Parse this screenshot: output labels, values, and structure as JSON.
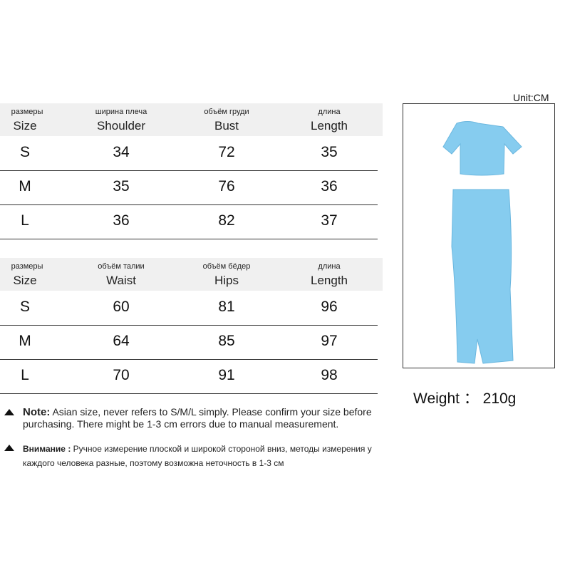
{
  "unit": "Unit:CM",
  "top_table": {
    "headers": [
      {
        "ru": "размеры",
        "en": "Size"
      },
      {
        "ru": "ширина плеча",
        "en": "Shoulder"
      },
      {
        "ru": "объём груди",
        "en": "Bust"
      },
      {
        "ru": "длина",
        "en": "Length"
      }
    ],
    "rows": [
      [
        "S",
        "34",
        "72",
        "35"
      ],
      [
        "M",
        "35",
        "76",
        "36"
      ],
      [
        "L",
        "36",
        "82",
        "37"
      ]
    ]
  },
  "bottom_table": {
    "headers": [
      {
        "ru": "размеры",
        "en": "Size"
      },
      {
        "ru": "объём талии",
        "en": "Waist"
      },
      {
        "ru": "объём бёдер",
        "en": "Hips"
      },
      {
        "ru": "длина",
        "en": "Length"
      }
    ],
    "rows": [
      [
        "S",
        "60",
        "81",
        "96"
      ],
      [
        "M",
        "64",
        "85",
        "97"
      ],
      [
        "L",
        "70",
        "91",
        "98"
      ]
    ]
  },
  "weight": "Weight ： 210g",
  "product_color": "#86ccef",
  "note_en": {
    "label": "Note:",
    "text": "Asian size, never refers to S/M/L simply. Please confirm your size before purchasing. There might be 1-3 cm errors due to manual measurement."
  },
  "note_ru": {
    "label": "Внимание :",
    "text": "Ручное измерение плоской и широкой стороной вниз, методы измерения у каждого человека разные, поэтому возможна неточность в 1-3 см"
  }
}
